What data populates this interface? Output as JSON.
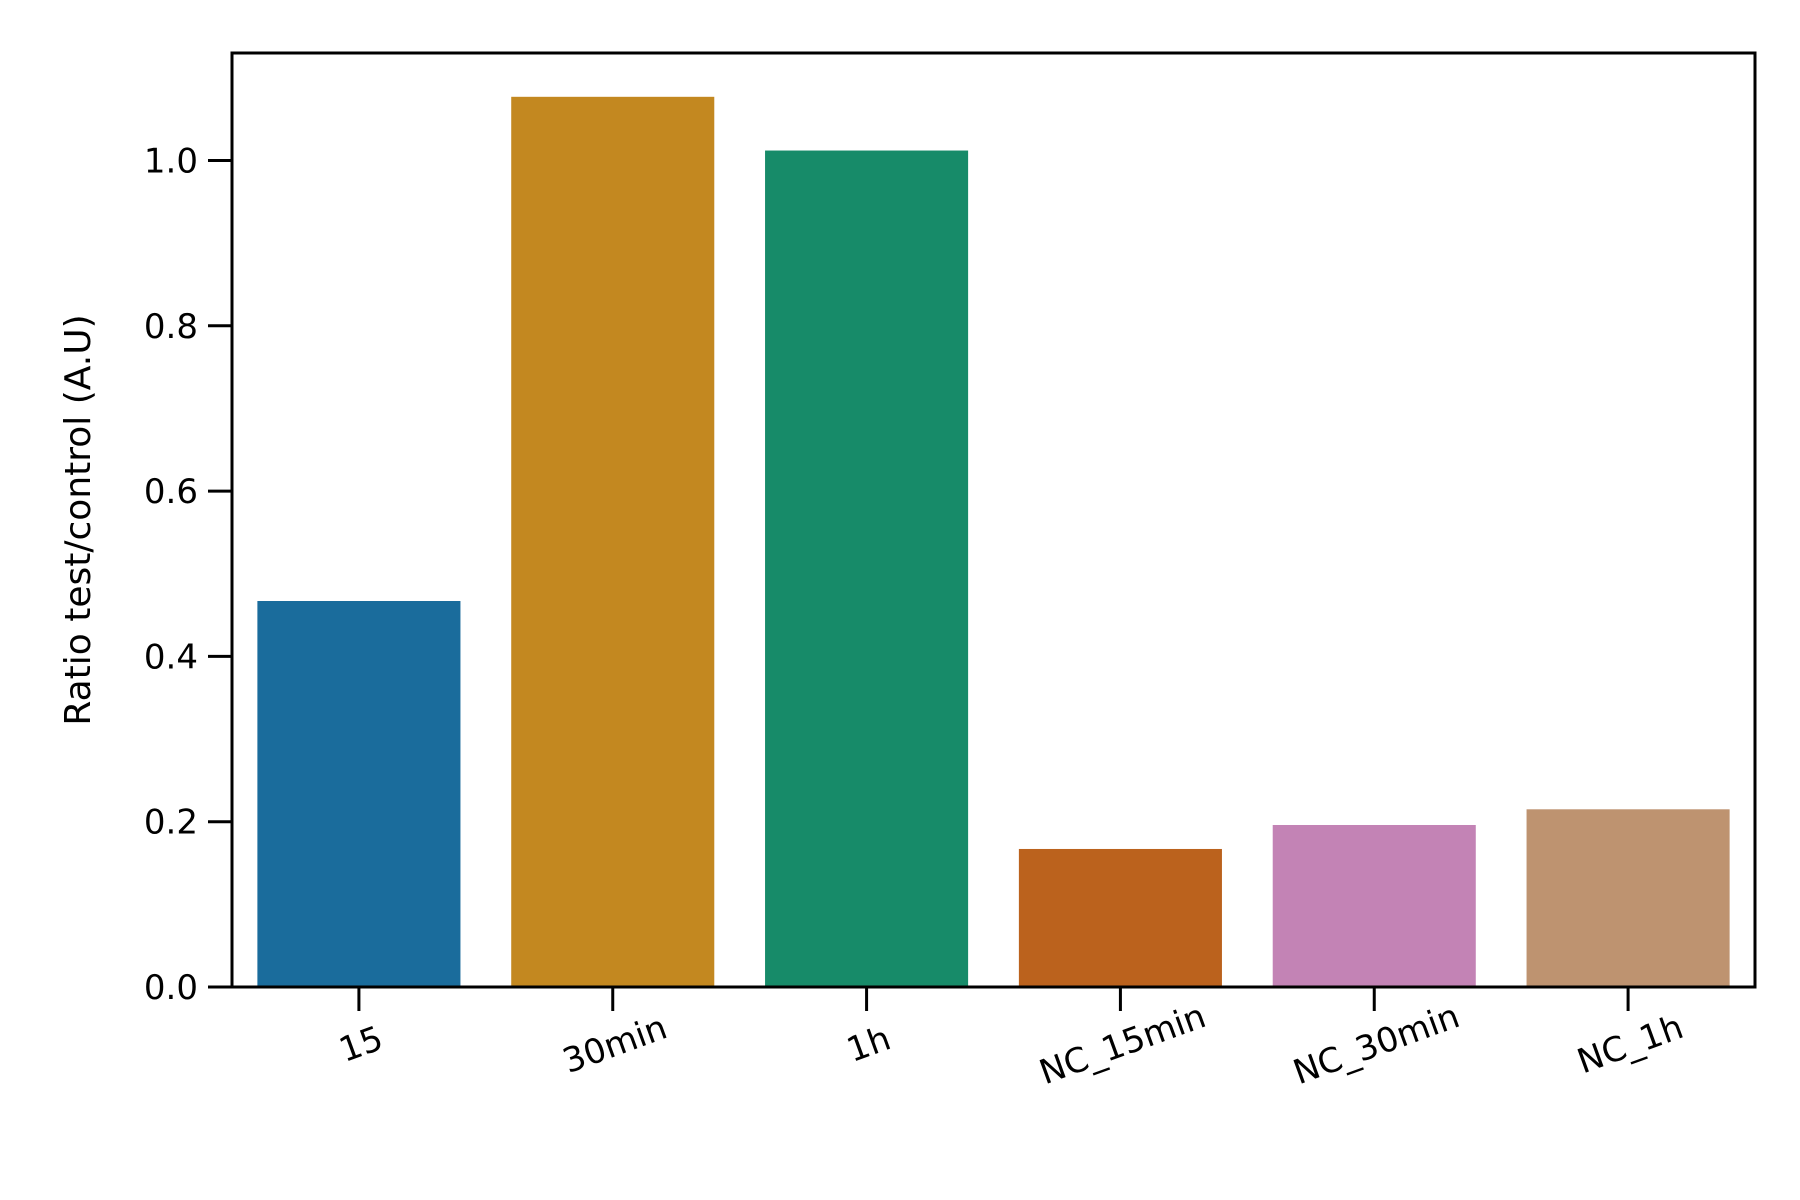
{
  "chart_data": {
    "type": "bar",
    "title": "",
    "xlabel": "",
    "ylabel": "Ratio test/control (A.U)",
    "categories": [
      "15",
      "30min",
      "1h",
      "NC_15min",
      "NC_30min",
      "NC_1h"
    ],
    "values": [
      0.467,
      1.077,
      1.012,
      0.167,
      0.196,
      0.215
    ],
    "colors": [
      "#1a6c9c",
      "#c38820",
      "#178b69",
      "#bb621d",
      "#c383b5",
      "#be9370"
    ],
    "ylim": [
      0,
      1.13
    ],
    "yticks": [
      0.0,
      0.2,
      0.4,
      0.6,
      0.8,
      1.0
    ],
    "ytick_labels": [
      "0.0",
      "0.2",
      "0.4",
      "0.6",
      "0.8",
      "1.0"
    ],
    "grid": false,
    "legend": "none"
  }
}
